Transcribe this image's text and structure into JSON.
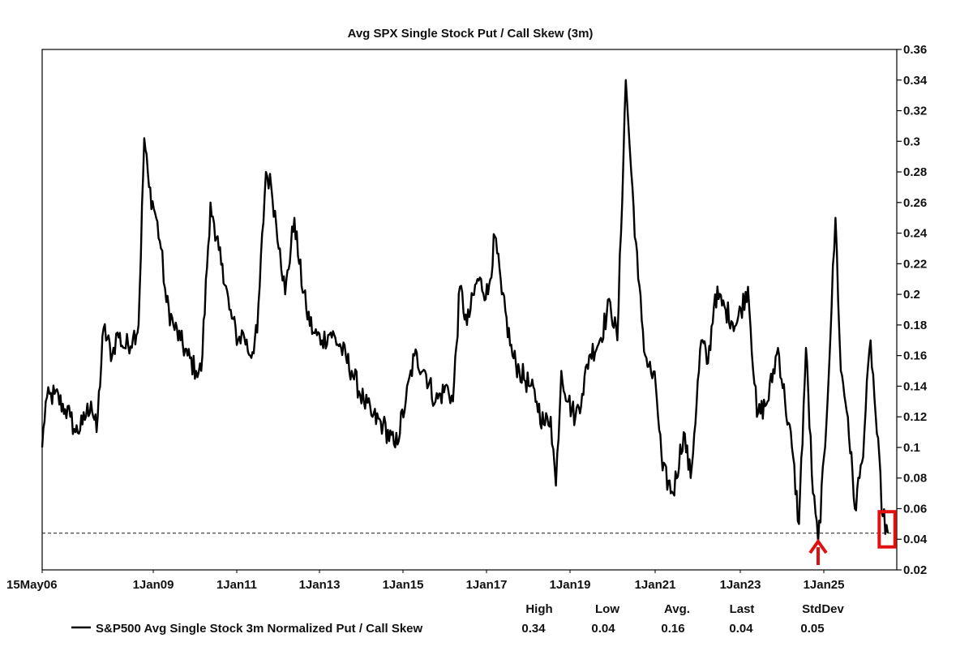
{
  "chart_data": {
    "type": "line",
    "title": "Avg SPX Single Stock Put / Call Skew (3m)",
    "xlabel": "",
    "ylabel": "",
    "x_tick_labels": [
      "15May06",
      "1Jan09",
      "1Jan11",
      "1Jan13",
      "1Jan15",
      "1Jan17",
      "1Jan19",
      "1Jan21",
      "1Jan23",
      "1Jan25"
    ],
    "x_range": [
      "2006-05-15",
      "2026-10-01"
    ],
    "ylim": [
      0.02,
      0.36
    ],
    "y_ticks": [
      0.02,
      0.04,
      0.06,
      0.08,
      0.1,
      0.12,
      0.14,
      0.16,
      0.18,
      0.2,
      0.22,
      0.24,
      0.26,
      0.28,
      0.3,
      0.32,
      0.34,
      0.36
    ],
    "y_tick_labels": [
      "0.02",
      "0.04",
      "0.06",
      "0.08",
      "0.1",
      "0.12",
      "0.14",
      "0.16",
      "0.18",
      "0.2",
      "0.22",
      "0.24",
      "0.26",
      "0.28",
      "0.3",
      "0.32",
      "0.34",
      "0.36"
    ],
    "y_axis_side": "right",
    "grid": false,
    "series": [
      {
        "name": "S&P500 Avg Single Stock 3m Normalized Put / Call Skew",
        "color": "#000000",
        "points": [
          [
            "2006-05-15",
            0.1
          ],
          [
            "2006-06-15",
            0.13
          ],
          [
            "2006-09-01",
            0.135
          ],
          [
            "2006-12-01",
            0.125
          ],
          [
            "2007-01-15",
            0.12
          ],
          [
            "2007-03-01",
            0.11
          ],
          [
            "2007-05-01",
            0.115
          ],
          [
            "2007-07-15",
            0.13
          ],
          [
            "2007-09-01",
            0.11
          ],
          [
            "2007-11-01",
            0.178
          ],
          [
            "2008-01-15",
            0.16
          ],
          [
            "2008-03-01",
            0.175
          ],
          [
            "2008-05-01",
            0.165
          ],
          [
            "2008-07-15",
            0.172
          ],
          [
            "2008-09-01",
            0.18
          ],
          [
            "2008-10-20",
            0.302
          ],
          [
            "2008-12-01",
            0.27
          ],
          [
            "2009-02-01",
            0.25
          ],
          [
            "2009-03-15",
            0.23
          ],
          [
            "2009-05-01",
            0.195
          ],
          [
            "2009-07-01",
            0.18
          ],
          [
            "2009-09-01",
            0.17
          ],
          [
            "2009-11-01",
            0.16
          ],
          [
            "2010-01-15",
            0.15
          ],
          [
            "2010-03-01",
            0.15
          ],
          [
            "2010-05-20",
            0.26
          ],
          [
            "2010-07-01",
            0.235
          ],
          [
            "2010-09-01",
            0.22
          ],
          [
            "2010-11-01",
            0.19
          ],
          [
            "2011-01-15",
            0.17
          ],
          [
            "2011-03-01",
            0.175
          ],
          [
            "2011-05-01",
            0.16
          ],
          [
            "2011-07-01",
            0.175
          ],
          [
            "2011-09-15",
            0.28
          ],
          [
            "2011-11-01",
            0.27
          ],
          [
            "2012-01-15",
            0.23
          ],
          [
            "2012-03-01",
            0.2
          ],
          [
            "2012-05-20",
            0.25
          ],
          [
            "2012-07-01",
            0.22
          ],
          [
            "2012-09-01",
            0.19
          ],
          [
            "2012-11-01",
            0.175
          ],
          [
            "2013-01-15",
            0.17
          ],
          [
            "2013-04-01",
            0.175
          ],
          [
            "2013-07-01",
            0.165
          ],
          [
            "2013-10-01",
            0.15
          ],
          [
            "2014-01-15",
            0.13
          ],
          [
            "2014-04-01",
            0.12
          ],
          [
            "2014-07-01",
            0.115
          ],
          [
            "2014-10-15",
            0.1
          ],
          [
            "2015-01-15",
            0.13
          ],
          [
            "2015-04-01",
            0.16
          ],
          [
            "2015-07-01",
            0.15
          ],
          [
            "2015-10-01",
            0.13
          ],
          [
            "2016-01-15",
            0.14
          ],
          [
            "2016-03-01",
            0.13
          ],
          [
            "2016-05-01",
            0.205
          ],
          [
            "2016-07-01",
            0.18
          ],
          [
            "2016-10-01",
            0.21
          ],
          [
            "2017-01-01",
            0.2
          ],
          [
            "2017-03-01",
            0.238
          ],
          [
            "2017-05-01",
            0.2
          ],
          [
            "2017-08-01",
            0.16
          ],
          [
            "2017-10-01",
            0.15
          ],
          [
            "2018-01-01",
            0.14
          ],
          [
            "2018-03-01",
            0.13
          ],
          [
            "2018-05-01",
            0.115
          ],
          [
            "2018-07-01",
            0.12
          ],
          [
            "2018-08-15",
            0.075
          ],
          [
            "2018-10-01",
            0.15
          ],
          [
            "2018-12-01",
            0.13
          ],
          [
            "2019-02-01",
            0.12
          ],
          [
            "2019-04-01",
            0.135
          ],
          [
            "2019-06-01",
            0.16
          ],
          [
            "2019-09-01",
            0.17
          ],
          [
            "2019-12-01",
            0.195
          ],
          [
            "2020-02-01",
            0.17
          ],
          [
            "2020-04-15",
            0.34
          ],
          [
            "2020-06-01",
            0.28
          ],
          [
            "2020-08-01",
            0.21
          ],
          [
            "2020-10-01",
            0.16
          ],
          [
            "2021-01-01",
            0.14
          ],
          [
            "2021-03-01",
            0.085
          ],
          [
            "2021-06-01",
            0.07
          ],
          [
            "2021-09-01",
            0.11
          ],
          [
            "2021-11-01",
            0.08
          ],
          [
            "2022-02-01",
            0.17
          ],
          [
            "2022-04-01",
            0.155
          ],
          [
            "2022-06-01",
            0.2
          ],
          [
            "2022-09-01",
            0.19
          ],
          [
            "2022-12-01",
            0.18
          ],
          [
            "2023-03-15",
            0.205
          ],
          [
            "2023-06-01",
            0.12
          ],
          [
            "2023-09-01",
            0.13
          ],
          [
            "2023-12-01",
            0.165
          ],
          [
            "2024-02-01",
            0.13
          ],
          [
            "2024-04-01",
            0.1
          ],
          [
            "2024-06-01",
            0.05
          ],
          [
            "2024-08-01",
            0.165
          ],
          [
            "2024-10-01",
            0.07
          ],
          [
            "2024-11-15",
            0.038
          ],
          [
            "2025-01-15",
            0.1
          ],
          [
            "2025-04-15",
            0.25
          ],
          [
            "2025-06-01",
            0.15
          ],
          [
            "2025-08-01",
            0.12
          ],
          [
            "2025-10-01",
            0.06
          ],
          [
            "2025-12-01",
            0.09
          ],
          [
            "2026-02-15",
            0.17
          ],
          [
            "2026-04-01",
            0.12
          ],
          [
            "2026-06-01",
            0.055
          ],
          [
            "2026-07-15",
            0.044
          ]
        ]
      }
    ],
    "reference_line": {
      "y": 0.044,
      "style": "dashed"
    },
    "annotations": [
      {
        "type": "arrow",
        "color": "#e01010",
        "x": "2024-11-15",
        "points_to_y": 0.038
      },
      {
        "type": "box",
        "color": "#e01010",
        "x_from": "2026-05-01",
        "x_to": "2026-09-15",
        "y_from": 0.035,
        "y_to": 0.058
      }
    ],
    "legend": {
      "position": "bottom",
      "label": "S&P500 Avg Single Stock 3m Normalized Put / Call Skew",
      "stats": [
        {
          "header": "High",
          "value": "0.34"
        },
        {
          "header": "Low",
          "value": "0.04"
        },
        {
          "header": "Avg.",
          "value": "0.16"
        },
        {
          "header": "Last",
          "value": "0.04"
        },
        {
          "header": "StdDev",
          "value": "0.05"
        }
      ]
    }
  }
}
